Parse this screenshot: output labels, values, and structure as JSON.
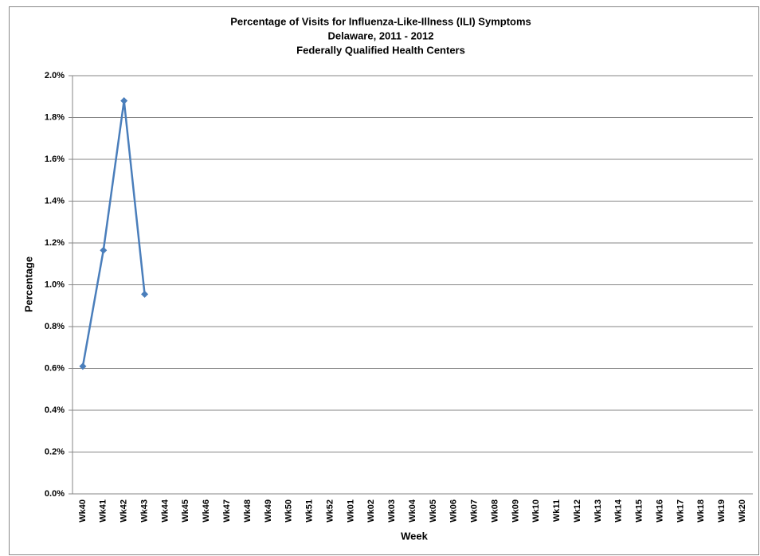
{
  "chart_data": {
    "type": "line",
    "title": [
      "Percentage of Visits for Influenza-Like-Illness (ILI) Symptoms",
      "Delaware, 2011 - 2012",
      "Federally Qualified Health Centers"
    ],
    "x_label": "Week",
    "y_label": "Percentage",
    "categories": [
      "Wk40",
      "Wk41",
      "Wk42",
      "Wk43",
      "Wk44",
      "Wk45",
      "Wk46",
      "Wk47",
      "Wk48",
      "Wk49",
      "Wk50",
      "Wk51",
      "Wk52",
      "Wk01",
      "Wk02",
      "Wk03",
      "Wk04",
      "Wk05",
      "Wk06",
      "Wk07",
      "Wk08",
      "Wk09",
      "Wk10",
      "Wk11",
      "Wk12",
      "Wk13",
      "Wk14",
      "Wk15",
      "Wk16",
      "Wk17",
      "Wk18",
      "Wk19",
      "Wk20"
    ],
    "series": [
      {
        "color": "#4a7ebb",
        "values": [
          0.61,
          1.165,
          1.88,
          0.955,
          null,
          null,
          null,
          null,
          null,
          null,
          null,
          null,
          null,
          null,
          null,
          null,
          null,
          null,
          null,
          null,
          null,
          null,
          null,
          null,
          null,
          null,
          null,
          null,
          null,
          null,
          null,
          null,
          null
        ]
      }
    ],
    "ylim": [
      0,
      2
    ],
    "yticks": [
      {
        "value": 0,
        "label": "0.0%"
      },
      {
        "value": 0.2,
        "label": "0.2%"
      },
      {
        "value": 0.4,
        "label": "0.4%"
      },
      {
        "value": 0.6,
        "label": "0.6%"
      },
      {
        "value": 0.8,
        "label": "0.8%"
      },
      {
        "value": 1,
        "label": "1.0%"
      },
      {
        "value": 1.2,
        "label": "1.2%"
      },
      {
        "value": 1.4,
        "label": "1.4%"
      },
      {
        "value": 1.6,
        "label": "1.6%"
      },
      {
        "value": 1.8,
        "label": "1.8%"
      },
      {
        "value": 2,
        "label": "2.0%"
      }
    ],
    "grid": true
  }
}
